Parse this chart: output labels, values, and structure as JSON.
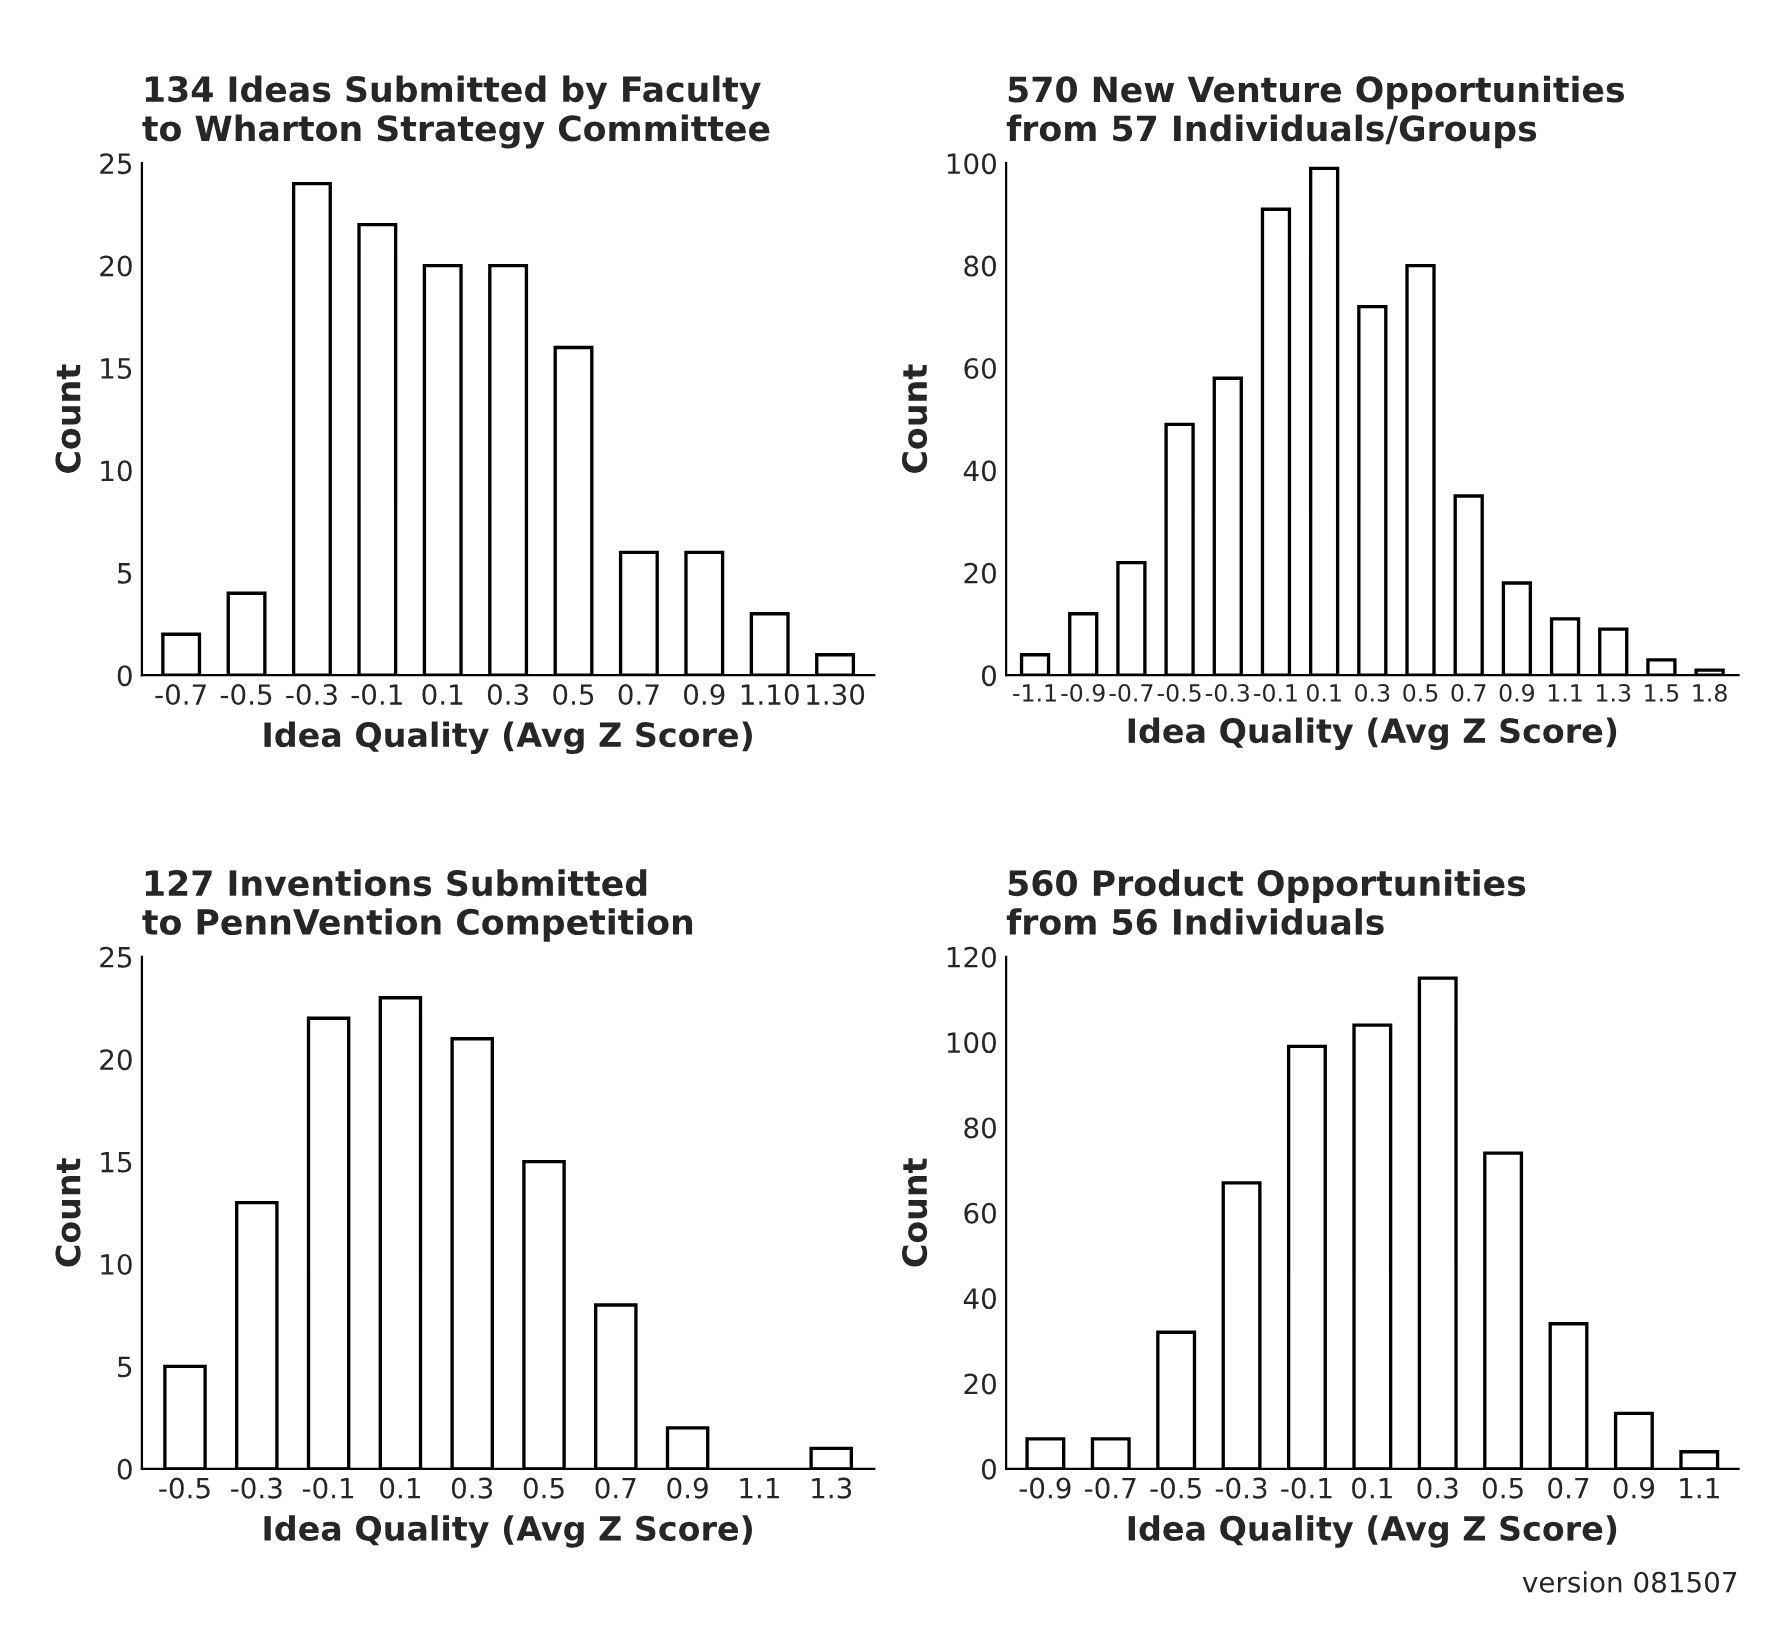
{
  "chart_data": [
    {
      "type": "bar",
      "title": "134 Ideas Submitted by Faculty\nto Wharton Strategy Committee",
      "xlabel": "Idea Quality (Avg Z Score)",
      "ylabel": "Count",
      "categories": [
        "-0.7",
        "-0.5",
        "-0.3",
        "-0.1",
        "0.1",
        "0.3",
        "0.5",
        "0.7",
        "0.9",
        "1.10",
        "1.30"
      ],
      "values": [
        2,
        4,
        24,
        22,
        20,
        20,
        16,
        6,
        6,
        3,
        1
      ],
      "color": "#ffffff",
      "ylim": [
        0,
        25
      ],
      "yticks": [
        0,
        5,
        10,
        15,
        20,
        25
      ],
      "grid": false
    },
    {
      "type": "bar",
      "title": "570 New Venture Opportunities\nfrom 57 Individuals/Groups",
      "xlabel": "Idea Quality (Avg Z Score)",
      "ylabel": "Count",
      "categories": [
        "-1.1",
        "-0.9",
        "-0.7",
        "-0.5",
        "-0.3",
        "-0.1",
        "0.1",
        "0.3",
        "0.5",
        "0.7",
        "0.9",
        "1.1",
        "1.3",
        "1.5",
        "1.8"
      ],
      "values": [
        4,
        12,
        22,
        49,
        58,
        91,
        99,
        72,
        80,
        35,
        18,
        11,
        9,
        3,
        1
      ],
      "color": "#ffffff",
      "ylim": [
        0,
        100
      ],
      "yticks": [
        0,
        20,
        40,
        60,
        80,
        100
      ],
      "grid": false
    },
    {
      "type": "bar",
      "title": "127 Inventions Submitted\nto PennVention Competition",
      "xlabel": "Idea Quality (Avg Z Score)",
      "ylabel": "Count",
      "categories": [
        "-0.5",
        "-0.3",
        "-0.1",
        "0.1",
        "0.3",
        "0.5",
        "0.7",
        "0.9",
        "1.1",
        "1.3"
      ],
      "values": [
        5,
        13,
        22,
        23,
        21,
        15,
        8,
        2,
        null,
        1
      ],
      "color": "#ffffff",
      "ylim": [
        0,
        25
      ],
      "yticks": [
        0,
        5,
        10,
        15,
        20,
        25
      ],
      "grid": false
    },
    {
      "type": "bar",
      "title": "560 Product Opportunities\nfrom 56 Individuals",
      "xlabel": "Idea Quality (Avg Z Score)",
      "ylabel": "Count",
      "categories": [
        "-0.9",
        "-0.7",
        "-0.5",
        "-0.3",
        "-0.1",
        "0.1",
        "0.3",
        "0.5",
        "0.7",
        "0.9",
        "1.1"
      ],
      "values": [
        7,
        7,
        32,
        67,
        99,
        104,
        115,
        74,
        34,
        13,
        4
      ],
      "color": "#ffffff",
      "ylim": [
        0,
        120
      ],
      "yticks": [
        0,
        20,
        40,
        60,
        80,
        100,
        120
      ],
      "grid": false,
      "annotations": [
        "version 081507"
      ]
    }
  ]
}
